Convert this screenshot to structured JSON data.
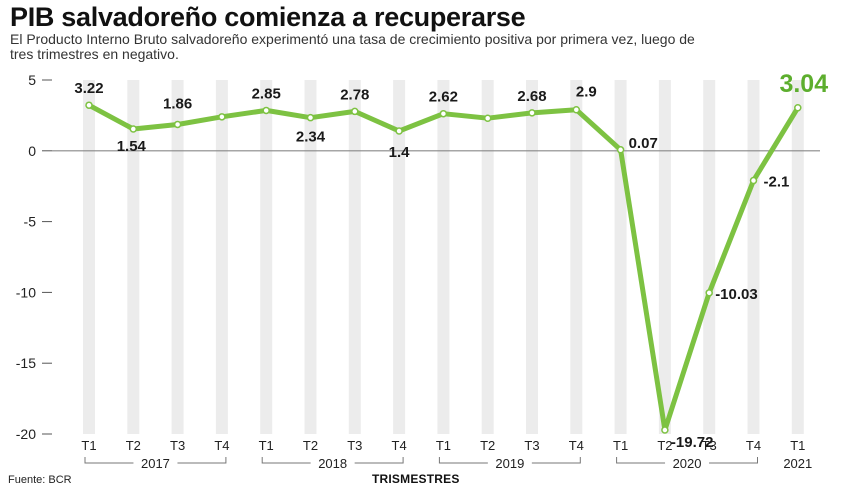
{
  "header": {
    "title": "PIB salvadoreño comienza a recuperarse",
    "subtitle": "El Producto Interno Bruto salvadoreño experimentó una tasa de crecimiento positiva por primera vez, luego de tres trimestres en negativo."
  },
  "footer": {
    "source": "Fuente: BCR",
    "xlabel": "TRISMESTRES"
  },
  "chart_data": {
    "type": "line",
    "title": "PIB salvadoreño comienza a recuperarse",
    "xlabel": "TRISMESTRES",
    "ylabel": "",
    "ylim": [
      -20,
      5
    ],
    "yticks": [
      5,
      0,
      -5,
      -10,
      -15,
      -20
    ],
    "grid": "vertical column bands, zero line",
    "legend": "none",
    "quarters": [
      "T1",
      "T2",
      "T3",
      "T4",
      "T1",
      "T2",
      "T3",
      "T4",
      "T1",
      "T2",
      "T3",
      "T4",
      "T1",
      "T2",
      "T3",
      "T4",
      "T1"
    ],
    "years": [
      {
        "label": "2017",
        "start": 0,
        "end": 3
      },
      {
        "label": "2018",
        "start": 4,
        "end": 7
      },
      {
        "label": "2019",
        "start": 8,
        "end": 11
      },
      {
        "label": "2020",
        "start": 12,
        "end": 15
      },
      {
        "label": "2021",
        "start": 16,
        "end": 16
      }
    ],
    "values": [
      3.22,
      1.54,
      1.86,
      2.4,
      2.85,
      2.34,
      2.78,
      1.4,
      2.62,
      2.3,
      2.68,
      2.9,
      0.07,
      -19.72,
      -10.03,
      -2.1,
      3.04
    ],
    "data_labels": [
      {
        "index": 0,
        "text": "3.22"
      },
      {
        "index": 1,
        "text": "1.54"
      },
      {
        "index": 2,
        "text": "1.86"
      },
      {
        "index": 4,
        "text": "2.85"
      },
      {
        "index": 5,
        "text": "2.34"
      },
      {
        "index": 6,
        "text": "2.78"
      },
      {
        "index": 7,
        "text": "1.4"
      },
      {
        "index": 8,
        "text": "2.62"
      },
      {
        "index": 10,
        "text": "2.68"
      },
      {
        "index": 11,
        "text": "2.9"
      },
      {
        "index": 12,
        "text": "0.07"
      },
      {
        "index": 13,
        "text": "-19.72"
      },
      {
        "index": 14,
        "text": "-10.03"
      },
      {
        "index": 15,
        "text": "-2.1"
      },
      {
        "index": 16,
        "text": "3.04"
      }
    ],
    "colors": {
      "line": "#7dc242",
      "highlight_label": "#5dae2e",
      "band": "#ececec",
      "zero_line": "#888888"
    }
  }
}
